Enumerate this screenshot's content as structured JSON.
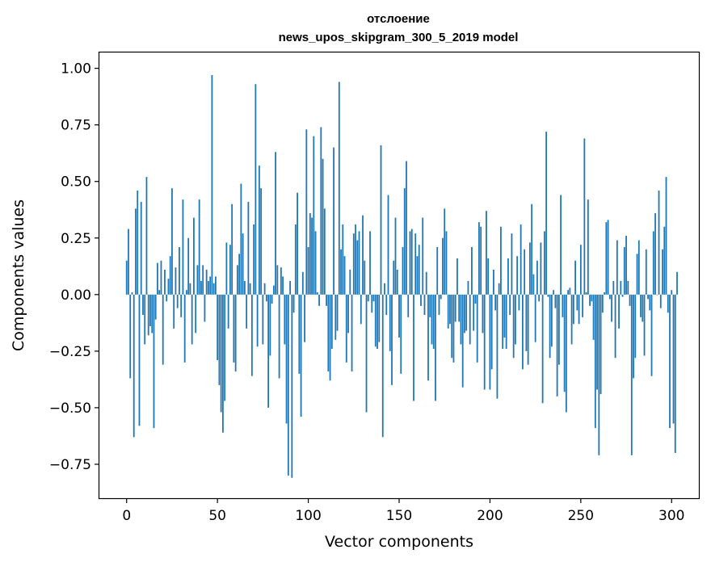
{
  "chart_data": {
    "type": "bar",
    "title": "отслоение",
    "subtitle": "news_upos_skipgram_300_5_2019 model",
    "xlabel": "Vector components",
    "ylabel": "Components values",
    "xlim": [
      -15,
      315
    ],
    "ylim": [
      -0.9,
      1.07
    ],
    "x_ticks": [
      0,
      50,
      100,
      150,
      200,
      250,
      300
    ],
    "x_tick_labels": [
      "0",
      "50",
      "100",
      "150",
      "200",
      "250",
      "300"
    ],
    "y_ticks": [
      1.0,
      0.75,
      0.5,
      0.25,
      0.0,
      -0.25,
      -0.5,
      -0.75
    ],
    "y_tick_labels": [
      "1.00",
      "0.75",
      "0.50",
      "0.25",
      "0.00",
      "−0.25",
      "−0.50",
      "−0.75"
    ],
    "grid": false,
    "bar_color": "#1f77b4",
    "series": [
      {
        "values": [
          0.15,
          0.29,
          -0.37,
          0.01,
          -0.63,
          0.38,
          0.46,
          -0.58,
          0.41,
          -0.09,
          -0.22,
          0.52,
          -0.18,
          -0.14,
          -0.17,
          -0.59,
          -0.11,
          0.14,
          0.02,
          0.15,
          -0.31,
          0.11,
          -0.03,
          0.07,
          0.17,
          0.47,
          -0.15,
          0.12,
          -0.06,
          0.21,
          -0.1,
          0.42,
          -0.3,
          0.02,
          0.25,
          0.05,
          -0.22,
          0.34,
          -0.17,
          0.13,
          0.42,
          0.06,
          0.13,
          -0.12,
          0.11,
          0.06,
          0.08,
          0.97,
          0.05,
          0.08,
          -0.29,
          -0.4,
          -0.52,
          -0.61,
          -0.47,
          0.23,
          -0.15,
          0.22,
          0.4,
          -0.3,
          -0.34,
          0.13,
          0.18,
          0.49,
          0.27,
          0.06,
          -0.15,
          0.41,
          0.05,
          -0.36,
          0.31,
          0.93,
          -0.23,
          0.57,
          0.47,
          -0.22,
          0.05,
          -0.03,
          -0.5,
          -0.27,
          -0.04,
          0.04,
          0.63,
          0.13,
          -0.37,
          0.12,
          0.08,
          -0.22,
          -0.57,
          -0.8,
          0.06,
          -0.81,
          -0.08,
          0.31,
          0.45,
          -0.35,
          -0.54,
          0.1,
          -0.21,
          0.73,
          0.21,
          0.36,
          0.34,
          0.7,
          0.28,
          0.01,
          -0.05,
          0.74,
          0.6,
          0.38,
          -0.05,
          -0.34,
          -0.38,
          -0.24,
          0.65,
          -0.2,
          -0.16,
          0.94,
          0.2,
          0.31,
          0.17,
          -0.3,
          -0.17,
          0.11,
          -0.34,
          0.27,
          0.31,
          0.24,
          0.28,
          -0.13,
          0.35,
          0.15,
          -0.52,
          -0.03,
          0.28,
          -0.08,
          -0.03,
          -0.23,
          -0.24,
          -0.21,
          0.66,
          -0.63,
          0.05,
          -0.09,
          0.44,
          -0.25,
          -0.4,
          0.15,
          0.34,
          0.11,
          -0.19,
          -0.35,
          0.21,
          0.47,
          0.59,
          -0.1,
          0.28,
          0.29,
          -0.47,
          0.27,
          0.17,
          0.22,
          -0.05,
          0.34,
          -0.09,
          0.1,
          -0.38,
          -0.1,
          -0.22,
          -0.24,
          -0.47,
          0.21,
          -0.09,
          -0.02,
          0.25,
          0.38,
          0.28,
          -0.15,
          -0.13,
          -0.28,
          -0.3,
          -0.12,
          0.16,
          -0.12,
          -0.22,
          -0.41,
          -0.17,
          -0.16,
          0.06,
          -0.22,
          0.21,
          -0.16,
          -0.04,
          -0.3,
          0.32,
          0.3,
          -0.17,
          -0.42,
          0.37,
          0.16,
          -0.42,
          -0.33,
          0.11,
          -0.07,
          -0.46,
          0.05,
          0.3,
          -0.24,
          -0.19,
          -0.24,
          0.16,
          -0.09,
          0.27,
          -0.28,
          -0.22,
          0.17,
          -0.07,
          0.31,
          -0.33,
          0.2,
          -0.25,
          -0.31,
          0.23,
          0.4,
          0.09,
          -0.21,
          0.15,
          -0.03,
          0.23,
          -0.48,
          0.28,
          0.72,
          -0.01,
          -0.28,
          -0.23,
          0.02,
          -0.06,
          -0.45,
          -0.31,
          0.44,
          -0.1,
          -0.43,
          -0.52,
          0.02,
          0.03,
          -0.22,
          -0.13,
          0.15,
          -0.07,
          -0.13,
          0.22,
          -0.1,
          0.69,
          0.01,
          0.42,
          -0.05,
          -0.03,
          -0.2,
          -0.59,
          -0.42,
          -0.71,
          -0.44,
          -0.08,
          0.01,
          0.32,
          0.33,
          -0.02,
          -0.12,
          0.06,
          -0.28,
          0.24,
          -0.15,
          0.06,
          -0.01,
          0.21,
          0.26,
          0.06,
          -0.05,
          -0.71,
          -0.37,
          -0.28,
          0.18,
          0.24,
          -0.1,
          -0.12,
          -0.27,
          0.2,
          -0.02,
          -0.07,
          -0.36,
          0.28,
          0.36,
          0.0,
          0.46,
          -0.06,
          0.2,
          0.3,
          0.52,
          -0.08,
          -0.59,
          0.02,
          -0.57,
          -0.7,
          0.1
        ]
      }
    ]
  }
}
